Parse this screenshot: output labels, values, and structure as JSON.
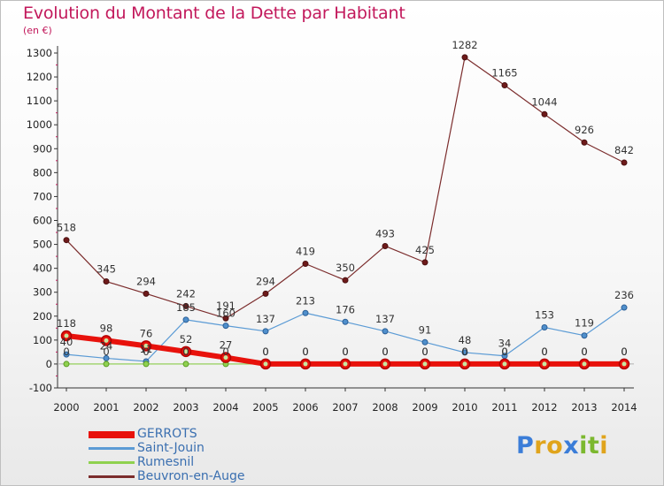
{
  "header": {
    "title": "Evolution du Montant de la Dette par Habitant",
    "subtitle": "(en €)"
  },
  "brand": {
    "logo_letters": [
      "P",
      "r",
      "o",
      "x",
      "i",
      "t",
      "i"
    ],
    "logo_colors": [
      "#3b7dd8",
      "#e0a41c",
      "#e0a41c",
      "#3b7dd8",
      "#7cb82f",
      "#7cb82f",
      "#e0a41c"
    ]
  },
  "chart_data": {
    "type": "line",
    "x": [
      "2000",
      "2001",
      "2002",
      "2003",
      "2004",
      "2005",
      "2006",
      "2007",
      "2008",
      "2009",
      "2010",
      "2011",
      "2012",
      "2013",
      "2014"
    ],
    "ylim": [
      -100,
      1300
    ],
    "yticks": [
      "-100",
      "0",
      "100",
      "200",
      "300",
      "400",
      "500",
      "600",
      "700",
      "800",
      "900",
      "1000",
      "1100",
      "1200",
      "1300"
    ],
    "grid": false,
    "legend_position": "bottom-left",
    "series": [
      {
        "name": "GERROTS",
        "color": "#e8120c",
        "values": [
          118,
          98,
          76,
          52,
          27,
          0,
          0,
          0,
          0,
          0,
          0,
          0,
          0,
          0,
          0
        ],
        "labels": [
          "118",
          "98",
          "76",
          "52",
          "27",
          "0",
          "0",
          "0",
          "0",
          "0",
          "0",
          "0",
          "0",
          "0",
          "0"
        ]
      },
      {
        "name": "Saint-Jouin",
        "color": "#5b9bd5",
        "values": [
          40,
          24,
          11,
          185,
          160,
          137,
          213,
          176,
          137,
          91,
          48,
          34,
          153,
          119,
          236
        ],
        "labels": [
          "40",
          "24",
          "11",
          "185",
          "160",
          "137",
          "213",
          "176",
          "137",
          "91",
          "48",
          "34",
          "153",
          "119",
          "236"
        ]
      },
      {
        "name": "Rumesnil",
        "color": "#8fd14f",
        "values": [
          0,
          0,
          0,
          0,
          0,
          0,
          0,
          0,
          0,
          0,
          0,
          0,
          0,
          0,
          0
        ],
        "labels": [
          "0",
          "0",
          "0",
          "0",
          "0",
          "0",
          "0",
          "0",
          "0",
          "0",
          "0",
          "0",
          "0",
          "0",
          "0"
        ]
      },
      {
        "name": "Beuvron-en-Auge",
        "color": "#7b2c2c",
        "values": [
          518,
          345,
          294,
          242,
          191,
          294,
          419,
          350,
          493,
          425,
          1282,
          1165,
          1044,
          926,
          842
        ],
        "labels": [
          "518",
          "345",
          "294",
          "242",
          "191",
          "294",
          "419",
          "350",
          "493",
          "425",
          "1282",
          "1165",
          "1044",
          "926",
          "842"
        ]
      }
    ]
  }
}
